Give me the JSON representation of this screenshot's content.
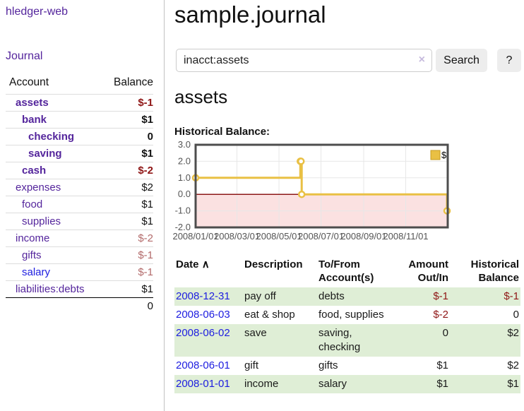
{
  "colors": {
    "link_purple": "#54259c",
    "link_blue": "#1d1de0",
    "negative_strong": "#8f1616",
    "negative_muted": "#b36b6b",
    "row_green": "#dfeed6",
    "chart_gold": "#e9c044",
    "chart_negative_fill": "#fbe1e1",
    "zero_line_red": "#8e1919"
  },
  "sidebar": {
    "brand": "hledger-web",
    "journal_link": "Journal",
    "header": {
      "account": "Account",
      "balance": "Balance"
    },
    "accounts": [
      {
        "name": "assets",
        "balance": "$-1"
      },
      {
        "name": "bank",
        "balance": "$1"
      },
      {
        "name": "checking",
        "balance": "0"
      },
      {
        "name": "saving",
        "balance": "$1"
      },
      {
        "name": "cash",
        "balance": "$-2"
      },
      {
        "name": "expenses",
        "balance": "$2"
      },
      {
        "name": "food",
        "balance": "$1"
      },
      {
        "name": "supplies",
        "balance": "$1"
      },
      {
        "name": "income",
        "balance": "$-2"
      },
      {
        "name": "gifts",
        "balance": "$-1"
      },
      {
        "name": "salary",
        "balance": "$-1"
      },
      {
        "name": "liabilities:debts",
        "balance": "$1"
      }
    ],
    "total": "0"
  },
  "main": {
    "title": "sample.journal",
    "search": {
      "value": "inacct:assets",
      "clear_icon": "×",
      "button": "Search",
      "help": "?"
    },
    "account_heading": "assets",
    "chart_title": "Historical Balance:"
  },
  "chart_data": {
    "type": "line",
    "step": true,
    "title": "Historical Balance:",
    "series": [
      {
        "name": "$",
        "color": "#e9c044",
        "points": [
          [
            "2008-01-01",
            1
          ],
          [
            "2008-06-01",
            2
          ],
          [
            "2008-06-02",
            2
          ],
          [
            "2008-06-03",
            0
          ],
          [
            "2008-12-31",
            -1
          ]
        ]
      }
    ],
    "x_range": [
      "2008-01-01",
      "2009-01-01"
    ],
    "ylim": [
      -2.0,
      3.0
    ],
    "y_ticks": [
      3.0,
      2.0,
      1.0,
      0.0,
      -1.0,
      -2.0
    ],
    "y_tick_labels": [
      "3.0",
      "2.0",
      "1.0",
      "0.0",
      "-1.0",
      "-2.0"
    ],
    "x_ticks": [
      "2008-01-01",
      "2008-03-01",
      "2008-05-01",
      "2008-07-01",
      "2008-09-01",
      "2008-11-01"
    ],
    "x_tick_labels": [
      "2008/01/01",
      "2008/03/01",
      "2008/05/01",
      "2008/07/01",
      "2008/09/01",
      "2008/11/01"
    ],
    "legend": {
      "label": "$",
      "position": "top-right"
    },
    "grid": true,
    "negative_region_shaded": true
  },
  "register": {
    "headers": {
      "date": "Date",
      "sort_arrow": "∧",
      "description": "Description",
      "tofrom": "To/From Account(s)",
      "amount": "Amount Out/In",
      "balance": "Historical Balance"
    },
    "rows": [
      {
        "date": "2008-12-31",
        "description": "pay off",
        "tofrom": "debts",
        "amount": "$-1",
        "balance": "$-1"
      },
      {
        "date": "2008-06-03",
        "description": "eat & shop",
        "tofrom": "food, supplies",
        "amount": "$-2",
        "balance": "0"
      },
      {
        "date": "2008-06-02",
        "description": "save",
        "tofrom": "saving,\nchecking",
        "amount": "0",
        "balance": "$2"
      },
      {
        "date": "2008-06-01",
        "description": "gift",
        "tofrom": "gifts",
        "amount": "$1",
        "balance": "$2"
      },
      {
        "date": "2008-01-01",
        "description": "income",
        "tofrom": "salary",
        "amount": "$1",
        "balance": "$1"
      }
    ]
  }
}
